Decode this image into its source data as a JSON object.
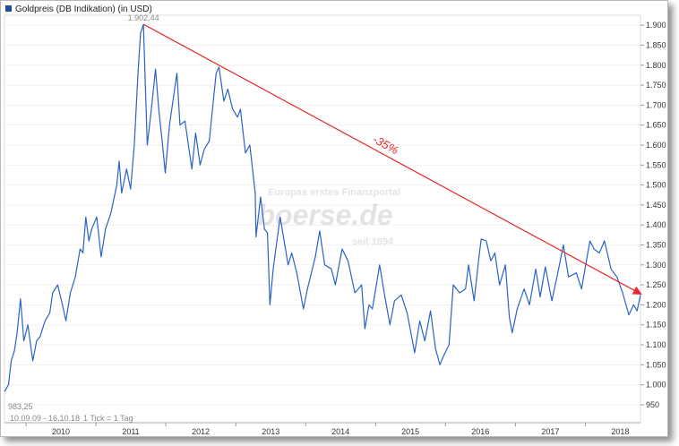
{
  "chart_data": {
    "type": "line",
    "title": "Goldpreis (DB Indikation) (in USD)",
    "legend_color": "#1f4e9c",
    "line_color": "#2a63c4",
    "arrow_color": "#e8282a",
    "x_ticks": [
      "2010",
      "2011",
      "2012",
      "2013",
      "2014",
      "2015",
      "2016",
      "2017",
      "2018"
    ],
    "x_tick_years": [
      2010,
      2011,
      2012,
      2013,
      2014,
      2015,
      2016,
      2017,
      2018
    ],
    "y_ticks": [
      950,
      1000,
      1050,
      1100,
      1150,
      1200,
      1250,
      1300,
      1350,
      1400,
      1450,
      1500,
      1550,
      1600,
      1650,
      1700,
      1750,
      1800,
      1850,
      1900
    ],
    "y_tick_labels": [
      "950",
      "1.000",
      "1.050",
      "1.100",
      "1.150",
      "1.200",
      "1.250",
      "1.300",
      "1.350",
      "1.400",
      "1.450",
      "1.500",
      "1.550",
      "1.600",
      "1.650",
      "1.700",
      "1.750",
      "1.800",
      "1.850",
      "1.900"
    ],
    "xlim": [
      "2009-09-10",
      "2018-10-16"
    ],
    "ylim": [
      905,
      1925
    ],
    "high_label": "1.902,44",
    "low_label": "983,25",
    "high_point": {
      "x": "2011-09-06",
      "y": 1902.44
    },
    "low_point": {
      "x": "2009-09-10",
      "y": 983.25
    },
    "trend_label": "-35%",
    "trend_line": {
      "from": {
        "x": "2011-09-06",
        "y": 1902.44
      },
      "to": {
        "x": "2018-10-16",
        "y": 1228
      }
    },
    "footer_range": "10.09.09 - 16.10.18",
    "footer_tick": "1 Tick = 1 Tag",
    "watermark_line1": "Europas erstes Finanzportal",
    "watermark_brand": "boerse.de",
    "watermark_line2": "seit 1994",
    "series": [
      {
        "values": [
          [
            "2009-09-10",
            983
          ],
          [
            "2009-10-01",
            1000
          ],
          [
            "2009-10-15",
            1060
          ],
          [
            "2009-11-01",
            1085
          ],
          [
            "2009-11-15",
            1130
          ],
          [
            "2009-12-03",
            1215
          ],
          [
            "2009-12-20",
            1110
          ],
          [
            "2010-01-10",
            1150
          ],
          [
            "2010-02-05",
            1060
          ],
          [
            "2010-02-25",
            1110
          ],
          [
            "2010-03-15",
            1120
          ],
          [
            "2010-04-10",
            1160
          ],
          [
            "2010-05-05",
            1180
          ],
          [
            "2010-05-20",
            1230
          ],
          [
            "2010-06-15",
            1250
          ],
          [
            "2010-07-10",
            1200
          ],
          [
            "2010-07-28",
            1160
          ],
          [
            "2010-08-20",
            1230
          ],
          [
            "2010-09-15",
            1270
          ],
          [
            "2010-10-10",
            1340
          ],
          [
            "2010-10-25",
            1330
          ],
          [
            "2010-11-09",
            1420
          ],
          [
            "2010-11-25",
            1360
          ],
          [
            "2010-12-10",
            1390
          ],
          [
            "2011-01-05",
            1420
          ],
          [
            "2011-01-28",
            1320
          ],
          [
            "2011-02-20",
            1390
          ],
          [
            "2011-03-20",
            1430
          ],
          [
            "2011-04-20",
            1500
          ],
          [
            "2011-05-02",
            1560
          ],
          [
            "2011-05-15",
            1480
          ],
          [
            "2011-06-10",
            1540
          ],
          [
            "2011-07-01",
            1490
          ],
          [
            "2011-07-20",
            1600
          ],
          [
            "2011-08-10",
            1790
          ],
          [
            "2011-08-22",
            1880
          ],
          [
            "2011-09-06",
            1902
          ],
          [
            "2011-09-26",
            1600
          ],
          [
            "2011-10-15",
            1680
          ],
          [
            "2011-11-08",
            1790
          ],
          [
            "2011-11-25",
            1690
          ],
          [
            "2011-12-15",
            1600
          ],
          [
            "2011-12-29",
            1530
          ],
          [
            "2012-01-20",
            1650
          ],
          [
            "2012-02-28",
            1780
          ],
          [
            "2012-03-15",
            1650
          ],
          [
            "2012-04-10",
            1660
          ],
          [
            "2012-05-16",
            1540
          ],
          [
            "2012-06-05",
            1630
          ],
          [
            "2012-06-28",
            1550
          ],
          [
            "2012-07-20",
            1590
          ],
          [
            "2012-08-15",
            1610
          ],
          [
            "2012-09-20",
            1780
          ],
          [
            "2012-10-05",
            1795
          ],
          [
            "2012-10-30",
            1710
          ],
          [
            "2012-11-20",
            1740
          ],
          [
            "2012-12-15",
            1690
          ],
          [
            "2013-01-10",
            1670
          ],
          [
            "2013-01-25",
            1690
          ],
          [
            "2013-02-20",
            1580
          ],
          [
            "2013-03-15",
            1600
          ],
          [
            "2013-04-12",
            1480
          ],
          [
            "2013-04-16",
            1370
          ],
          [
            "2013-05-10",
            1470
          ],
          [
            "2013-05-30",
            1390
          ],
          [
            "2013-06-15",
            1380
          ],
          [
            "2013-06-28",
            1200
          ],
          [
            "2013-07-15",
            1290
          ],
          [
            "2013-08-20",
            1420
          ],
          [
            "2013-09-10",
            1360
          ],
          [
            "2013-10-01",
            1300
          ],
          [
            "2013-10-20",
            1330
          ],
          [
            "2013-11-15",
            1280
          ],
          [
            "2013-12-20",
            1190
          ],
          [
            "2014-01-10",
            1240
          ],
          [
            "2014-02-20",
            1320
          ],
          [
            "2014-03-15",
            1385
          ],
          [
            "2014-04-10",
            1300
          ],
          [
            "2014-05-15",
            1290
          ],
          [
            "2014-06-05",
            1250
          ],
          [
            "2014-07-10",
            1340
          ],
          [
            "2014-08-10",
            1310
          ],
          [
            "2014-09-15",
            1230
          ],
          [
            "2014-10-20",
            1250
          ],
          [
            "2014-11-06",
            1140
          ],
          [
            "2014-11-28",
            1200
          ],
          [
            "2014-12-15",
            1190
          ],
          [
            "2015-01-22",
            1300
          ],
          [
            "2015-02-15",
            1230
          ],
          [
            "2015-03-17",
            1150
          ],
          [
            "2015-04-10",
            1210
          ],
          [
            "2015-05-15",
            1225
          ],
          [
            "2015-06-15",
            1180
          ],
          [
            "2015-07-24",
            1080
          ],
          [
            "2015-08-20",
            1160
          ],
          [
            "2015-09-15",
            1110
          ],
          [
            "2015-10-15",
            1185
          ],
          [
            "2015-11-10",
            1090
          ],
          [
            "2015-12-03",
            1050
          ],
          [
            "2015-12-20",
            1070
          ],
          [
            "2016-01-20",
            1100
          ],
          [
            "2016-02-11",
            1250
          ],
          [
            "2016-03-15",
            1230
          ],
          [
            "2016-04-15",
            1240
          ],
          [
            "2016-05-01",
            1300
          ],
          [
            "2016-05-30",
            1210
          ],
          [
            "2016-06-24",
            1320
          ],
          [
            "2016-07-06",
            1365
          ],
          [
            "2016-08-01",
            1360
          ],
          [
            "2016-08-25",
            1310
          ],
          [
            "2016-09-15",
            1330
          ],
          [
            "2016-10-10",
            1250
          ],
          [
            "2016-11-09",
            1300
          ],
          [
            "2016-11-30",
            1170
          ],
          [
            "2016-12-15",
            1130
          ],
          [
            "2017-01-10",
            1190
          ],
          [
            "2017-02-15",
            1240
          ],
          [
            "2017-03-15",
            1200
          ],
          [
            "2017-04-17",
            1290
          ],
          [
            "2017-05-10",
            1220
          ],
          [
            "2017-06-06",
            1295
          ],
          [
            "2017-07-10",
            1210
          ],
          [
            "2017-08-10",
            1280
          ],
          [
            "2017-09-08",
            1350
          ],
          [
            "2017-10-05",
            1270
          ],
          [
            "2017-11-15",
            1280
          ],
          [
            "2017-12-12",
            1240
          ],
          [
            "2018-01-10",
            1320
          ],
          [
            "2018-01-25",
            1360
          ],
          [
            "2018-02-15",
            1340
          ],
          [
            "2018-03-15",
            1330
          ],
          [
            "2018-04-11",
            1360
          ],
          [
            "2018-05-15",
            1290
          ],
          [
            "2018-06-15",
            1270
          ],
          [
            "2018-07-15",
            1230
          ],
          [
            "2018-08-16",
            1175
          ],
          [
            "2018-09-10",
            1200
          ],
          [
            "2018-09-28",
            1185
          ],
          [
            "2018-10-16",
            1225
          ]
        ]
      }
    ]
  }
}
